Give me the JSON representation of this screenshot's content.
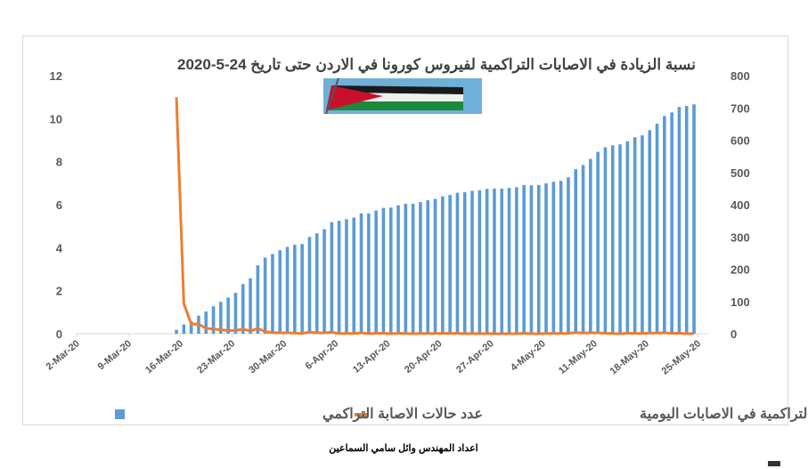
{
  "chart_data": {
    "type": "bar+line",
    "title": "نسبة الزيادة في الاصابات التراكمية لفيروس كورونا  في الاردن حتى تاريخ 24-5-2020",
    "credit": "اعداد المهندس وائل سامي السماعين",
    "x_start": "2-Mar-20",
    "x_tick_labels": [
      "2-Mar-20",
      "9-Mar-20",
      "16-Mar-20",
      "23-Mar-20",
      "30-Mar-20",
      "6-Apr-20",
      "13-Apr-20",
      "20-Apr-20",
      "27-Apr-20",
      "4-May-20",
      "11-May-20",
      "18-May-20",
      "25-May-20"
    ],
    "data_start_day_offset": 13,
    "left_axis": {
      "min": 0,
      "max": 12,
      "ticks": [
        "0",
        "2",
        "4",
        "6",
        "8",
        "10",
        "12"
      ]
    },
    "right_axis": {
      "min": 0,
      "max": 800,
      "ticks": [
        "0",
        "100",
        "200",
        "300",
        "400",
        "500",
        "600",
        "700",
        "800"
      ]
    },
    "grid": false,
    "legend_position": "bottom",
    "series": [
      {
        "name": "عدد حالات الاصابة  التراكمي",
        "type": "bar",
        "axis": "right",
        "color": "#5b9bd5",
        "values": [
          12,
          29,
          39,
          56,
          69,
          85,
          99,
          112,
          127,
          154,
          172,
          212,
          236,
          247,
          259,
          269,
          276,
          278,
          300,
          311,
          324,
          346,
          350,
          355,
          360,
          373,
          373,
          382,
          390,
          391,
          398,
          403,
          403,
          408,
          414,
          418,
          426,
          430,
          437,
          439,
          443,
          445,
          449,
          450,
          450,
          452,
          454,
          461,
          460,
          461,
          466,
          471,
          474,
          485,
          510,
          523,
          542,
          564,
          578,
          584,
          587,
          597,
          609,
          615,
          631,
          651,
          675,
          686,
          703,
          706,
          711
        ]
      },
      {
        "name": "نسبة الزيادة التراكمية في الاصابات اليومية",
        "type": "line",
        "axis": "left",
        "color": "#ed7d31",
        "values": [
          11.0,
          1.4,
          0.45,
          0.45,
          0.25,
          0.22,
          0.18,
          0.15,
          0.15,
          0.22,
          0.12,
          0.25,
          0.1,
          0.05,
          0.04,
          0.04,
          0.03,
          0.01,
          0.08,
          0.04,
          0.04,
          0.07,
          0.01,
          0.01,
          0.01,
          0.04,
          0.0,
          0.02,
          0.02,
          0.0,
          0.02,
          0.01,
          0.0,
          0.01,
          0.01,
          0.01,
          0.02,
          0.01,
          0.02,
          0.0,
          0.01,
          0.0,
          0.01,
          0.0,
          0.0,
          0.0,
          0.0,
          0.02,
          0.0,
          0.0,
          0.01,
          0.01,
          0.01,
          0.02,
          0.05,
          0.03,
          0.04,
          0.04,
          0.02,
          0.01,
          0.0,
          0.02,
          0.02,
          0.01,
          0.03,
          0.03,
          0.04,
          0.02,
          0.02,
          0.0,
          0.01
        ]
      }
    ]
  }
}
